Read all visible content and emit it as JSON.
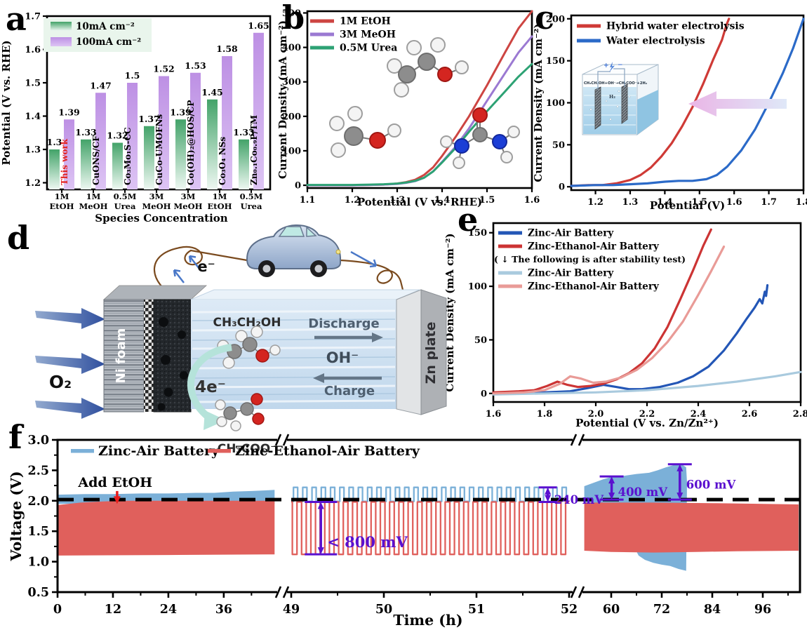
{
  "panels": {
    "a": {
      "letter": "a"
    },
    "b": {
      "letter": "b"
    },
    "c": {
      "letter": "c"
    },
    "d": {
      "letter": "d"
    },
    "e": {
      "letter": "e"
    },
    "f": {
      "letter": "f"
    }
  },
  "chart_data": [
    {
      "id": "a",
      "type": "bar",
      "ylabel": "Potential (V vs. RHE)",
      "xlabel": "Species Concentration",
      "ylim": [
        1.18,
        1.7
      ],
      "yticks": [
        "1.2",
        "1.3",
        "1.4",
        "1.5",
        "1.6",
        "1.7"
      ],
      "legend": [
        {
          "label": "10mA cm⁻²",
          "key": "green"
        },
        {
          "label": "100mA cm⁻²",
          "key": "purple"
        }
      ],
      "colors": {
        "green_top": "#43a369",
        "green_bottom": "#eef8f2",
        "purple_top": "#bd90e4",
        "purple_bottom": "#ddc4f4",
        "legend_bg": "#e9f5ec"
      },
      "groups": [
        {
          "cat": [
            "1M",
            "EtOH"
          ],
          "label": "This work",
          "label_color": "#e42320",
          "values": [
            1.3,
            1.39
          ],
          "value_labels": [
            "1.3",
            "1.39"
          ]
        },
        {
          "cat": [
            "1M",
            "MeOH"
          ],
          "label": "CuONS/CF",
          "label_color": "#000000",
          "values": [
            1.33,
            1.47
          ],
          "value_labels": [
            "1.33",
            "1.47"
          ]
        },
        {
          "cat": [
            "0.5M",
            "Urea"
          ],
          "label": "Co₃Mo₁S-CC",
          "label_color": "#000000",
          "values": [
            1.32,
            1.5
          ],
          "value_labels": [
            "1.32",
            "1.5"
          ]
        },
        {
          "cat": [
            "3M",
            "MeOH"
          ],
          "label": "CuCo-UMOFNs",
          "label_color": "#000000",
          "values": [
            1.37,
            1.52
          ],
          "value_labels": [
            "1.37",
            "1.52"
          ]
        },
        {
          "cat": [
            "3M",
            "MeOH"
          ],
          "label": "Co(OH)₂@HOS/CP",
          "label_color": "#000000",
          "values": [
            1.39,
            1.53
          ],
          "value_labels": [
            "1.39",
            "1.53"
          ]
        },
        {
          "cat": [
            "1M",
            "EtOH"
          ],
          "label": "Co₃O₄ NSs",
          "label_color": "#000000",
          "values": [
            1.45,
            1.58
          ],
          "value_labels": [
            "1.45",
            "1.58"
          ]
        },
        {
          "cat": [
            "0.5M",
            "Urea"
          ],
          "label": "Zn₀.₁Co₀.₉P/TM",
          "label_color": "#000000",
          "values": [
            1.33,
            1.65
          ],
          "value_labels": [
            "1.33",
            "1.65"
          ]
        }
      ]
    },
    {
      "id": "b",
      "type": "line",
      "xlabel": "Potential (V vs. RHE)",
      "ylabel": "Current Density (mA cm⁻²)",
      "xlim": [
        1.1,
        1.6
      ],
      "ylim": [
        -8,
        505
      ],
      "xticks": [
        1.1,
        1.2,
        1.3,
        1.4,
        1.5,
        1.6
      ],
      "yticks": [
        0,
        100,
        200,
        300,
        400,
        500
      ],
      "legend_rows": [
        "s0",
        "s1",
        "s2"
      ],
      "series": [
        {
          "name": "1M EtOH",
          "color": "#cd4542",
          "x": [
            1.1,
            1.15,
            1.2,
            1.24,
            1.27,
            1.3,
            1.32,
            1.34,
            1.36,
            1.38,
            1.4,
            1.43,
            1.46,
            1.5,
            1.54,
            1.57,
            1.6
          ],
          "y": [
            0,
            0,
            0,
            1,
            2,
            5,
            9,
            16,
            30,
            52,
            85,
            140,
            200,
            290,
            385,
            455,
            505
          ]
        },
        {
          "name": "3M MeOH",
          "color": "#9b79d2",
          "x": [
            1.1,
            1.15,
            1.2,
            1.24,
            1.27,
            1.3,
            1.32,
            1.34,
            1.36,
            1.38,
            1.4,
            1.43,
            1.46,
            1.5,
            1.54,
            1.57,
            1.6
          ],
          "y": [
            0,
            0,
            0,
            1,
            2,
            4,
            7,
            12,
            22,
            40,
            68,
            112,
            165,
            245,
            325,
            385,
            432
          ]
        },
        {
          "name": "0.5M Urea",
          "color": "#2da274",
          "x": [
            1.1,
            1.15,
            1.2,
            1.24,
            1.27,
            1.3,
            1.32,
            1.34,
            1.36,
            1.38,
            1.4,
            1.43,
            1.46,
            1.5,
            1.54,
            1.57,
            1.6
          ],
          "y": [
            1,
            1,
            1,
            2,
            3,
            5,
            8,
            13,
            22,
            40,
            66,
            108,
            155,
            215,
            272,
            315,
            352
          ]
        }
      ]
    },
    {
      "id": "c",
      "type": "line",
      "xlabel": "Potential (V)",
      "ylabel": "Current Density (mA cm⁻²)",
      "xlim": [
        1.13,
        1.8
      ],
      "ylim": [
        -4,
        204
      ],
      "xticks": [
        1.2,
        1.3,
        1.4,
        1.5,
        1.6,
        1.7,
        1.8
      ],
      "yticks": [
        0,
        50,
        100,
        150,
        200
      ],
      "legend_rows": [
        "s0",
        "s1"
      ],
      "series": [
        {
          "name": "Hybrid water electrolysis",
          "color": "#cf3a36",
          "x": [
            1.13,
            1.18,
            1.22,
            1.26,
            1.3,
            1.33,
            1.36,
            1.39,
            1.42,
            1.45,
            1.48,
            1.51,
            1.54,
            1.565,
            1.578,
            1.585
          ],
          "y": [
            1,
            2,
            2,
            4,
            8,
            14,
            23,
            36,
            52,
            72,
            95,
            122,
            152,
            175,
            193,
            200
          ]
        },
        {
          "name": "Water electrolysis",
          "color": "#2b6ac8",
          "x": [
            1.13,
            1.2,
            1.25,
            1.3,
            1.35,
            1.4,
            1.44,
            1.48,
            1.52,
            1.55,
            1.58,
            1.62,
            1.66,
            1.7,
            1.74,
            1.77,
            1.8
          ],
          "y": [
            1,
            2,
            2,
            3,
            4,
            6,
            7,
            7,
            9,
            14,
            24,
            43,
            68,
            100,
            135,
            165,
            200
          ]
        }
      ]
    },
    {
      "id": "e",
      "type": "line",
      "xlabel": "Potential (V vs. Zn/Zn²⁺)",
      "ylabel": "Current Density (mA cm⁻²)",
      "xlim": [
        1.6,
        2.8
      ],
      "ylim": [
        -8,
        159
      ],
      "xticks": [
        1.6,
        1.8,
        2.0,
        2.2,
        2.4,
        2.6,
        2.8
      ],
      "yticks": [
        0,
        50,
        100,
        150
      ],
      "legend_rows": [
        "s0",
        "s1",
        "note",
        "s2",
        "s3"
      ],
      "legend_note": "( ↓ The following is after stability test)",
      "series": [
        {
          "name": "Zinc-Air Battery",
          "color": "#2356b6",
          "x": [
            1.6,
            1.7,
            1.8,
            1.9,
            1.97,
            2.03,
            2.08,
            2.13,
            2.18,
            2.25,
            2.32,
            2.38,
            2.44,
            2.5,
            2.55,
            2.59,
            2.62,
            2.64,
            2.65,
            2.66,
            2.665,
            2.67
          ],
          "y": [
            0,
            1,
            1,
            2,
            5,
            8,
            6,
            4,
            4,
            6,
            10,
            16,
            25,
            40,
            56,
            70,
            80,
            88,
            84,
            95,
            91,
            101
          ]
        },
        {
          "name": "Zinc-Ethanol-Air Battery",
          "color": "#cc3434",
          "x": [
            1.6,
            1.7,
            1.76,
            1.81,
            1.85,
            1.89,
            1.93,
            1.98,
            2.03,
            2.08,
            2.13,
            2.18,
            2.23,
            2.28,
            2.33,
            2.38,
            2.42,
            2.45
          ],
          "y": [
            1,
            2,
            3,
            7,
            11,
            8,
            6,
            7,
            9,
            13,
            19,
            28,
            42,
            62,
            88,
            115,
            138,
            153
          ]
        },
        {
          "name": "Zinc-Air Battery",
          "color": "#a9cade",
          "x": [
            1.6,
            1.8,
            2.0,
            2.2,
            2.4,
            2.55,
            2.7,
            2.8
          ],
          "y": [
            -1,
            0,
            1,
            3,
            7,
            11,
            16,
            20
          ]
        },
        {
          "name": "Zinc-Ethanol-Air Battery",
          "color": "#e99b97",
          "x": [
            1.6,
            1.72,
            1.8,
            1.86,
            1.9,
            1.94,
            1.99,
            2.04,
            2.1,
            2.16,
            2.22,
            2.28,
            2.34,
            2.4,
            2.45,
            2.5
          ],
          "y": [
            0,
            1,
            3,
            9,
            16,
            14,
            10,
            11,
            15,
            22,
            33,
            48,
            67,
            92,
            114,
            137
          ]
        }
      ]
    },
    {
      "id": "f",
      "type": "area",
      "xlabel": "Time (h)",
      "ylabel": "Voltage (V)",
      "yticks": [
        0.5,
        1.0,
        1.5,
        2.0,
        2.5,
        3.0
      ],
      "x_segments": [
        {
          "ticks": [
            0,
            12,
            24,
            36
          ],
          "minor": [
            6,
            18,
            30,
            42
          ]
        },
        {
          "ticks": [
            49,
            50,
            51,
            52
          ],
          "minor": [
            49.5,
            50.5,
            51.5
          ]
        },
        {
          "ticks": [
            60,
            72,
            84,
            96
          ],
          "minor": [
            66,
            78,
            90,
            102
          ]
        }
      ],
      "dashed_voltage": 2.02,
      "legend": [
        {
          "label": "Zinc-Air Battery",
          "color": "#7bb0d8"
        },
        {
          "label": "Zinc-Ethanol-Air Battery",
          "color": "#e0605c"
        }
      ],
      "colors": {
        "blue": "#7bb0d8",
        "red": "#e0605c",
        "annotation": "#5a10cf",
        "dash": "#000000",
        "etoh_arrow": "#e81c1c"
      },
      "bands": {
        "blue_seg1_top": [
          [
            0,
            2.1
          ],
          [
            6,
            2.11
          ],
          [
            12,
            2.11
          ],
          [
            18,
            2.12
          ],
          [
            24,
            2.12
          ],
          [
            30,
            2.13
          ],
          [
            34,
            2.13
          ],
          [
            38,
            2.15
          ],
          [
            42,
            2.16
          ],
          [
            45,
            2.17
          ],
          [
            47,
            2.18
          ]
        ],
        "blue_seg1_bottom": 1.95,
        "red_seg1_top": [
          [
            0,
            1.93
          ],
          [
            5,
            1.97
          ],
          [
            10,
            1.99
          ],
          [
            14,
            2.0
          ],
          [
            47,
            2.0
          ]
        ],
        "red_seg1_bottom": [
          [
            0,
            1.1
          ],
          [
            24,
            1.11
          ],
          [
            47,
            1.12
          ]
        ],
        "cycles_seg2": {
          "t0": 49.0,
          "t1": 51.95,
          "period": 0.1,
          "blue_low": 1.99,
          "blue_high": 2.22,
          "red_high": 1.98,
          "red_low": 1.12
        },
        "blue_seg3_top": [
          [
            53.6,
            2.24
          ],
          [
            56,
            2.3
          ],
          [
            58,
            2.35
          ],
          [
            60,
            2.39
          ],
          [
            63,
            2.41
          ],
          [
            66,
            2.44
          ],
          [
            69,
            2.46
          ],
          [
            71,
            2.5
          ],
          [
            73,
            2.55
          ],
          [
            75,
            2.59
          ],
          [
            76.5,
            2.61
          ],
          [
            77.8,
            2.55
          ],
          [
            78,
            2.3
          ]
        ],
        "blue_seg3_bottom": [
          [
            53.6,
            1.93
          ],
          [
            57,
            1.92
          ],
          [
            60,
            1.9
          ],
          [
            62,
            1.88
          ],
          [
            63.5,
            1.7
          ],
          [
            65,
            1.3
          ],
          [
            66.5,
            1.1
          ],
          [
            68,
            1.03
          ],
          [
            70,
            0.98
          ],
          [
            72,
            0.95
          ],
          [
            74,
            0.93
          ],
          [
            76,
            0.88
          ],
          [
            77.8,
            0.85
          ]
        ],
        "red_seg3_top": [
          [
            53.6,
            1.97
          ],
          [
            70,
            1.97
          ],
          [
            85,
            1.96
          ],
          [
            95,
            1.95
          ],
          [
            104.5,
            1.94
          ]
        ],
        "red_seg3_bottom": [
          [
            53.6,
            1.18
          ],
          [
            60,
            1.16
          ],
          [
            70,
            1.15
          ],
          [
            80,
            1.16
          ],
          [
            90,
            1.17
          ],
          [
            104.5,
            1.18
          ]
        ]
      },
      "annotations": [
        {
          "id": "add-etoh",
          "text": "Add EtOH",
          "segment": 0,
          "t": 12.9,
          "v1": 2.16,
          "v2": 1.97,
          "label_t": 12.5,
          "label_v": 2.23
        },
        {
          "id": "gap-800",
          "text": "< 800 mV",
          "segment": 1,
          "t": 49.32,
          "v1": 1.98,
          "v2": 1.12,
          "label_v": 1.24,
          "cap": 46
        },
        {
          "id": "gap-240",
          "text": "240 mV",
          "segment": 1,
          "t": 51.77,
          "v1": 2.22,
          "v2": 1.98,
          "label_v": 1.95,
          "cap": 26
        },
        {
          "id": "gap-400",
          "text": "400 mV",
          "segment": 2,
          "t": 60.1,
          "v1": 2.4,
          "v2": 2.02,
          "label_v": 2.08,
          "cap": 34
        },
        {
          "id": "gap-600",
          "text": "600 mV",
          "segment": 2,
          "t": 76.3,
          "v1": 2.6,
          "v2": 2.02,
          "label_v": 2.2,
          "cap": 34
        }
      ]
    }
  ],
  "diagram_d": {
    "o2": "O₂",
    "electron": "e⁻",
    "four_e": "4e⁻",
    "ni_foam": "Ni foam",
    "zn_plate": "Zn plate",
    "ethanol": "CH₃CH₂OH",
    "acetate": "CH₃COO⁻",
    "discharge": "Discharge",
    "oh": "OH⁻",
    "charge": "Charge"
  },
  "inset_c": {
    "reaction": "CH₃CH₂OH+OH⁻→CH₃COO⁻+2H₂",
    "h2": "H₂",
    "plus": "+",
    "minus": "−"
  }
}
